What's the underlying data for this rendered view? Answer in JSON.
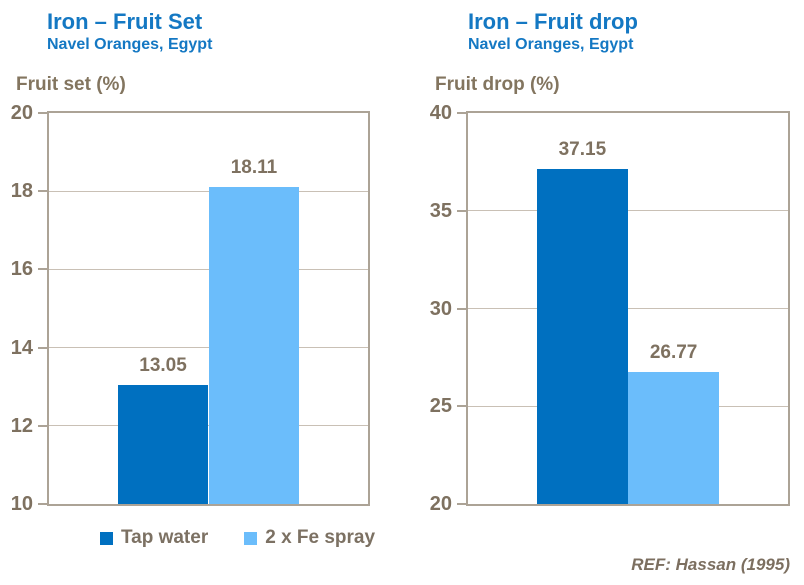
{
  "colors": {
    "title_blue": "#1478C3",
    "label_brown": "#7E7160",
    "plot_border": "#ACA396",
    "gridline": "#C9C0B5",
    "bar_dark": "#0070C0",
    "bar_light": "#6BBDFB"
  },
  "ref_note": "REF: Hassan (1995)",
  "legend": {
    "items": [
      {
        "label": "Tap water",
        "color_key": "bar_dark"
      },
      {
        "label": "2 x Fe spray",
        "color_key": "bar_light"
      }
    ]
  },
  "chart_data": [
    {
      "type": "bar",
      "title": "Iron – Fruit Set",
      "subtitle": "Navel Oranges, Egypt",
      "ylabel": "Fruit set (%)",
      "categories": [
        "Tap water",
        "2 x Fe spray"
      ],
      "values": [
        13.05,
        18.11
      ],
      "value_labels": [
        "13.05",
        "18.11"
      ],
      "ylim": [
        10,
        20
      ],
      "yticks": [
        10,
        12,
        14,
        16,
        18,
        20
      ],
      "grid": true,
      "legend_position": "bottom"
    },
    {
      "type": "bar",
      "title": "Iron – Fruit drop",
      "subtitle": "Navel Oranges, Egypt",
      "ylabel": "Fruit drop (%)",
      "categories": [
        "Tap water",
        "2 x Fe spray"
      ],
      "values": [
        37.15,
        26.77
      ],
      "value_labels": [
        "37.15",
        "26.77"
      ],
      "ylim": [
        20,
        40
      ],
      "yticks": [
        20,
        25,
        30,
        35,
        40
      ],
      "grid": true,
      "legend_position": "none"
    }
  ]
}
